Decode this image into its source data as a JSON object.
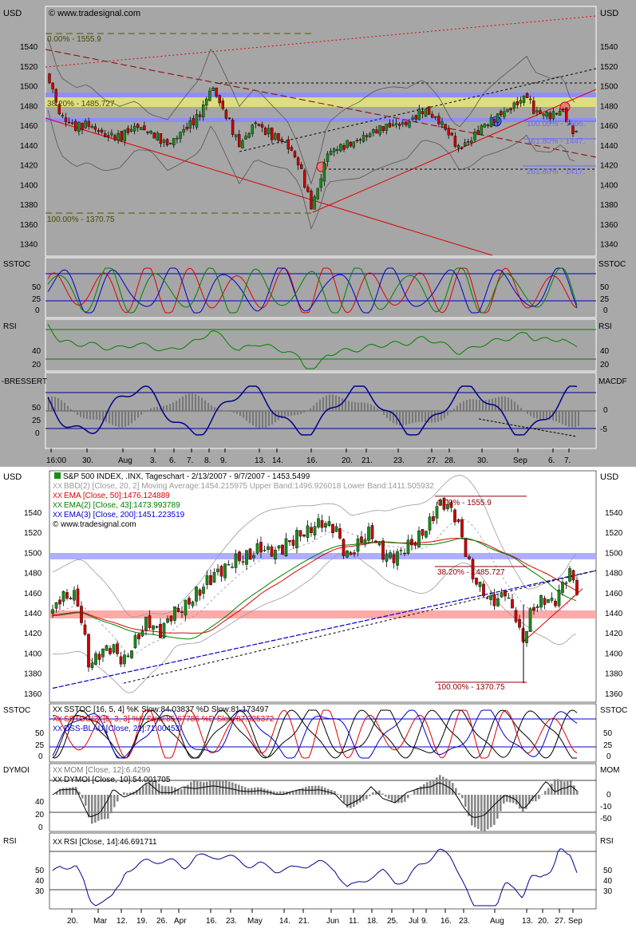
{
  "colors": {
    "upper_bg": "#a9a9a9",
    "lower_bg": "#ffffff",
    "pane_bg_upper": "#a6a6a6",
    "candle_up": "#1a8c1a",
    "candle_down": "#cc0000",
    "red": "#e00000",
    "green": "#008000",
    "blue": "#0000c8",
    "band_blue": "#8c8cff",
    "band_yellow": "#e6e67a",
    "band_pink": "#ff9a9a",
    "grid": "#000000"
  },
  "top_chart": {
    "currency_left": "USD",
    "currency_right": "USD",
    "watermark": "© www.tradesignal.com",
    "y_ticks": [
      "1540",
      "1520",
      "1500",
      "1480",
      "1460",
      "1440",
      "1420",
      "1400",
      "1380",
      "1360",
      "1340"
    ],
    "x_ticks": [
      "16:00",
      "30.",
      "Aug",
      "3.",
      "6.",
      "7.",
      "8.",
      "9.",
      "13.",
      "14.",
      "16.",
      "20.",
      "21.",
      "23.",
      "27.",
      "28.",
      "30.",
      "Sep",
      "6.",
      "7."
    ],
    "fib_labels": {
      "f0": "0.00% - 1555.9",
      "f382": "38.20% - 1485.727",
      "f100": "100.00% - 1370.75",
      "f100r": "100.00% - 1466.",
      "f161": "161.80% - 1447.",
      "f261": "261.80% - 1417."
    },
    "ssto_label": "SSTOC",
    "ssto_ticks": [
      "50",
      "25",
      "0"
    ],
    "rsi_label": "RSI",
    "rsi_ticks": [
      "40",
      "20"
    ],
    "bress_label": "-BRESSERT",
    "bress_ticks": [
      "50",
      "25",
      "0"
    ],
    "macd_label": "MACDF",
    "macd_ticks": [
      "0",
      "-5"
    ]
  },
  "bottom_chart": {
    "currency_left": "USD",
    "currency_right": "USD",
    "title": "S&P 500 INDEX, .INX, Tageschart - 2/13/2007 - 9/7/2007 - 1453.5499",
    "legend": [
      {
        "text": "BBD(2) [Close, 20, 2] Moving Average:1454.215975 Upper Band:1496.926018 Lower Band:1411.505932",
        "color": "#9a9a9a"
      },
      {
        "text": "EMA [Close, 50]:1476.124889",
        "color": "#e00000"
      },
      {
        "text": "EMA(2) [Close, 43]:1473.993789",
        "color": "#008000"
      },
      {
        "text": "EMA(3) [Close, 200]:1451.223519",
        "color": "#0000c8"
      },
      {
        "text": "© www.tradesignal.com",
        "color": "#000000"
      }
    ],
    "y_ticks": [
      "1540",
      "1520",
      "1500",
      "1480",
      "1460",
      "1440",
      "1420",
      "1400",
      "1380",
      "1360"
    ],
    "x_ticks": [
      "20.",
      "Mar",
      "12.",
      "19.",
      "26.",
      "Apr",
      "16.",
      "23.",
      "May",
      "14.",
      "21.",
      "Jun",
      "11.",
      "18.",
      "25.",
      "Jul",
      "9.",
      "16.",
      "23.",
      "Aug",
      "13.",
      "20.",
      "27.",
      "Sep"
    ],
    "fib_labels": {
      "f0": "0.00% - 1555.9",
      "f382": "38.20% - 1485.727",
      "f100": "100.00% - 1370.75"
    },
    "ssto_label": "SSTOC",
    "ssto_legend": [
      {
        "text": "SSTOC [16, 5, 4] %K Slow:84.03837 %D Slow:81.173497",
        "color": "#000000"
      },
      {
        "text": "SSTOC(2) [5, 3, 3] %K Slow:85.67786 %D Slow:87.325372",
        "color": "#e00000"
      },
      {
        "text": "DSS-BLAU [Close, 21]:71.00453",
        "color": "#0000c8"
      }
    ],
    "ssto_ticks": [
      "50",
      "25",
      "0"
    ],
    "dymoi_label": "DYMOI",
    "mom_label": "MOM",
    "mom_legend": [
      {
        "text": "MOM [Close, 12]:6.4299",
        "color": "#777777"
      },
      {
        "text": "DYMOI [Close, 10]:54.001705",
        "color": "#000000"
      }
    ],
    "dymoi_ticks": [
      "40",
      "20",
      "0"
    ],
    "mom_ticks": [
      "0",
      "-10",
      "-50"
    ],
    "rsi_label": "RSI",
    "rsi_legend": [
      {
        "text": "RSI [Close, 14]:46.691711",
        "color": "#000000"
      }
    ],
    "rsi_ticks": [
      "50",
      "40",
      "30"
    ]
  }
}
